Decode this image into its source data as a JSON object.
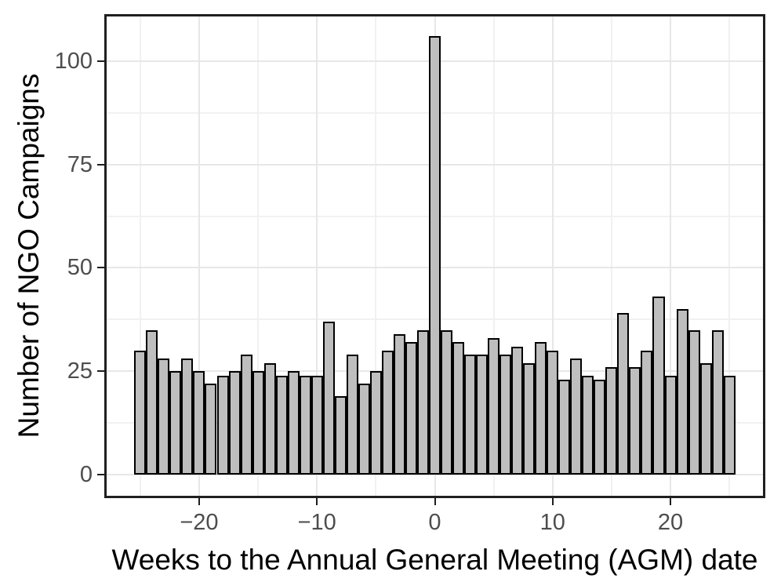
{
  "chart_data": {
    "type": "bar",
    "subtype": "histogram",
    "title": "",
    "xlabel": "Weeks to the Annual General Meeting (AGM) date",
    "ylabel": "Number of NGO Campaigns",
    "binwidth": 1,
    "x": [
      -25,
      -24,
      -23,
      -22,
      -21,
      -20,
      -19,
      -18,
      -17,
      -16,
      -15,
      -14,
      -13,
      -12,
      -11,
      -10,
      -9,
      -8,
      -7,
      -6,
      -5,
      -4,
      -3,
      -2,
      -1,
      0,
      1,
      2,
      3,
      4,
      5,
      6,
      7,
      8,
      9,
      10,
      11,
      12,
      13,
      14,
      15,
      16,
      17,
      18,
      19,
      20,
      21,
      22,
      23,
      24,
      25
    ],
    "values": [
      30,
      35,
      28,
      25,
      28,
      25,
      22,
      24,
      25,
      29,
      25,
      27,
      24,
      25,
      24,
      24,
      37,
      19,
      29,
      22,
      25,
      30,
      34,
      32,
      35,
      106,
      35,
      32,
      29,
      29,
      33,
      29,
      31,
      27,
      32,
      30,
      23,
      28,
      24,
      23,
      26,
      39,
      26,
      30,
      43,
      24,
      40,
      35,
      27,
      35,
      24
    ],
    "xlim": [
      -28.05,
      28.05
    ],
    "ylim": [
      -5.68,
      111.36
    ],
    "x_ticks": [
      {
        "v": -20,
        "label": "−20"
      },
      {
        "v": -10,
        "label": "−10"
      },
      {
        "v": 0,
        "label": "0"
      },
      {
        "v": 10,
        "label": "10"
      },
      {
        "v": 20,
        "label": "20"
      }
    ],
    "y_ticks": [
      {
        "v": 0,
        "label": "0"
      },
      {
        "v": 25,
        "label": "25"
      },
      {
        "v": 50,
        "label": "50"
      },
      {
        "v": 75,
        "label": "75"
      },
      {
        "v": 100,
        "label": "100"
      }
    ],
    "x_minor_gridlines": [
      -25,
      -15,
      -5,
      5,
      15,
      25
    ],
    "y_minor_gridlines": [
      12.5,
      37.5,
      62.5,
      87.5
    ],
    "grid": true,
    "legend_position": "none",
    "colors": {
      "bar_fill": "#bebebe",
      "bar_stroke": "#000000",
      "grid_major": "#e7e7e7",
      "grid_minor": "#f1f1f1",
      "panel_border": "#1f1f1f",
      "tick_label": "#4d4d4d",
      "axis_title": "#000000",
      "background": "#ffffff"
    }
  }
}
